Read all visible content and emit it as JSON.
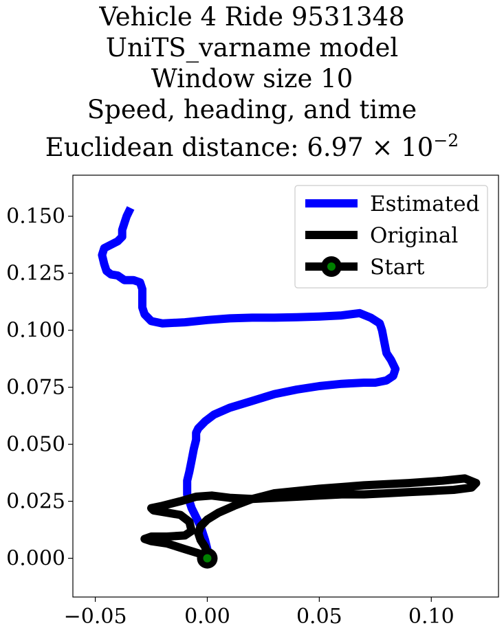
{
  "chart_data": {
    "type": "line",
    "title": {
      "line1": "Vehicle 4 Ride 9531348",
      "line2": "UniTS_varname model",
      "line3": "Window size 10",
      "line4": "Speed, heading, and time",
      "line5_prefix": "Euclidean distance: 6.97",
      "line5_times": "×",
      "line5_base": "10",
      "line5_exp": "−2"
    },
    "xlim": [
      -0.06,
      0.13
    ],
    "ylim": [
      -0.017,
      0.168
    ],
    "xticks": [
      -0.05,
      0.0,
      0.05,
      0.1
    ],
    "xtick_labels": [
      "−0.05",
      "0.00",
      "0.05",
      "0.10"
    ],
    "yticks": [
      0.0,
      0.025,
      0.05,
      0.075,
      0.1,
      0.125,
      0.15
    ],
    "ytick_labels": [
      "0.000",
      "0.025",
      "0.050",
      "0.075",
      "0.100",
      "0.125",
      "0.150"
    ],
    "legend_position": "top-right",
    "grid": false,
    "series": [
      {
        "name": "Estimated",
        "color": "#0000ff",
        "x": [
          0.0,
          -0.001,
          -0.003,
          -0.007,
          -0.009,
          -0.009,
          -0.008,
          -0.007,
          -0.006,
          -0.005,
          -0.005,
          -0.004,
          -0.001,
          0.003,
          0.01,
          0.02,
          0.03,
          0.04,
          0.05,
          0.06,
          0.07,
          0.075,
          0.08,
          0.083,
          0.084,
          0.082,
          0.08,
          0.079,
          0.078,
          0.077,
          0.073,
          0.068,
          0.06,
          0.05,
          0.04,
          0.03,
          0.02,
          0.01,
          0.0,
          -0.01,
          -0.02,
          -0.025,
          -0.028,
          -0.029,
          -0.029,
          -0.029,
          -0.03,
          -0.033,
          -0.037,
          -0.04,
          -0.043,
          -0.045,
          -0.046,
          -0.047,
          -0.046,
          -0.043,
          -0.04,
          -0.038,
          -0.038,
          -0.037,
          -0.036,
          -0.035
        ],
        "y": [
          0.004,
          0.008,
          0.014,
          0.022,
          0.028,
          0.034,
          0.038,
          0.043,
          0.048,
          0.052,
          0.055,
          0.057,
          0.06,
          0.063,
          0.066,
          0.069,
          0.072,
          0.074,
          0.0755,
          0.0765,
          0.077,
          0.077,
          0.078,
          0.08,
          0.083,
          0.087,
          0.09,
          0.095,
          0.1,
          0.103,
          0.1055,
          0.1075,
          0.1065,
          0.106,
          0.1057,
          0.1055,
          0.1055,
          0.1052,
          0.1045,
          0.1035,
          0.103,
          0.104,
          0.107,
          0.11,
          0.114,
          0.118,
          0.121,
          0.122,
          0.122,
          0.124,
          0.1245,
          0.126,
          0.129,
          0.133,
          0.136,
          0.1375,
          0.139,
          0.141,
          0.144,
          0.147,
          0.15,
          0.152
        ]
      },
      {
        "name": "Original",
        "color": "#000000",
        "x": [
          0.0,
          -0.001,
          -0.003,
          -0.004,
          -0.003,
          0.0,
          0.005,
          0.012,
          0.02,
          0.03,
          0.05,
          0.07,
          0.09,
          0.105,
          0.115,
          0.12,
          0.118,
          0.11,
          0.1,
          0.09,
          0.08,
          0.07,
          0.06,
          0.05,
          0.04,
          0.03,
          0.02,
          0.01,
          0.002,
          -0.005,
          -0.012,
          -0.02,
          -0.025,
          -0.024,
          -0.018,
          -0.012,
          -0.008,
          -0.007,
          -0.01,
          -0.018,
          -0.025,
          -0.028,
          -0.025,
          -0.018,
          -0.01,
          0.0
        ],
        "y": [
          0.002,
          0.005,
          0.008,
          0.011,
          0.014,
          0.017,
          0.02,
          0.023,
          0.026,
          0.0285,
          0.0305,
          0.032,
          0.033,
          0.034,
          0.035,
          0.033,
          0.031,
          0.03,
          0.0295,
          0.029,
          0.0285,
          0.028,
          0.028,
          0.0275,
          0.027,
          0.0265,
          0.026,
          0.0265,
          0.0275,
          0.027,
          0.025,
          0.023,
          0.022,
          0.021,
          0.02,
          0.019,
          0.016,
          0.012,
          0.01,
          0.0095,
          0.0095,
          0.0085,
          0.0075,
          0.0065,
          0.004,
          0.001
        ]
      },
      {
        "name": "Start",
        "color": "#000000",
        "marker_color": "#008000",
        "x": [
          0.0
        ],
        "y": [
          0.0
        ]
      }
    ]
  }
}
